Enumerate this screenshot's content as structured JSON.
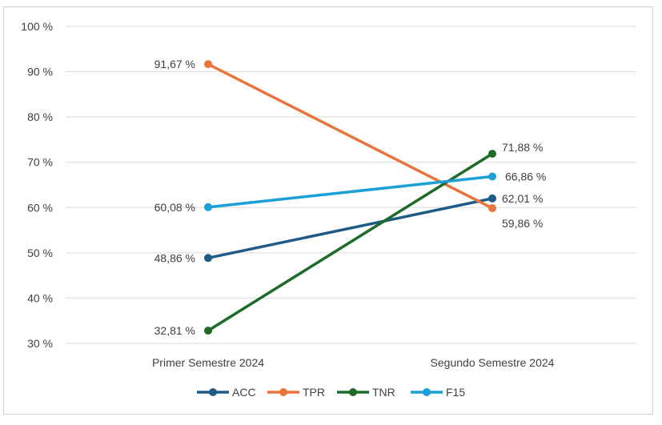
{
  "chart_data": {
    "type": "line",
    "categories": [
      "Primer Semestre 2024",
      "Segundo Semestre 2024"
    ],
    "series": [
      {
        "name": "ACC",
        "values": [
          48.86,
          62.01
        ],
        "labels": [
          "48,86 %",
          "62,01 %"
        ],
        "color": "#1f5b86"
      },
      {
        "name": "TPR",
        "values": [
          91.67,
          59.86
        ],
        "labels": [
          "91,67 %",
          "59,86 %"
        ],
        "color": "#e8743b"
      },
      {
        "name": "TNR",
        "values": [
          32.81,
          71.88
        ],
        "labels": [
          "32,81 %",
          "71,88 %"
        ],
        "color": "#1e6b2a"
      },
      {
        "name": "F15",
        "values": [
          60.08,
          66.86
        ],
        "labels": [
          "60,08 %",
          "66,86 %"
        ],
        "color": "#1ba0d8"
      }
    ],
    "ylim": [
      30,
      100
    ],
    "yticks": [
      "30 %",
      "40 %",
      "50 %",
      "60 %",
      "70 %",
      "80 %",
      "90 %",
      "100 %"
    ],
    "ytick_values": [
      30,
      40,
      50,
      60,
      70,
      80,
      90,
      100
    ],
    "grid": true,
    "legend_position": "bottom"
  }
}
